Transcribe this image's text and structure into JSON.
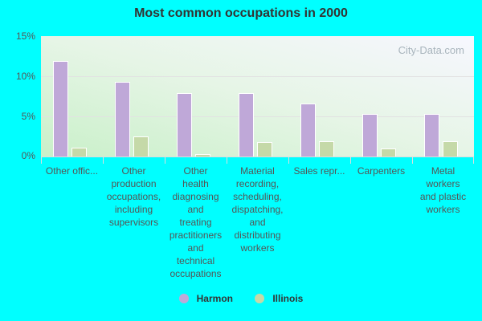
{
  "chart_data": {
    "type": "bar",
    "title": "Most common occupations in 2000",
    "xlabel": "",
    "ylabel": "",
    "ylim": [
      0,
      15
    ],
    "yticks": [
      "0%",
      "5%",
      "10%",
      "15%"
    ],
    "grid": true,
    "legend_position": "bottom",
    "categories": [
      "Other offic...",
      "Other production occupations, including supervisors",
      "Other health diagnosing and treating practitioners and technical occupations",
      "Material recording, scheduling, dispatching, and distributing workers",
      "Sales repr...",
      "Carpenters",
      "Metal workers and plastic workers"
    ],
    "series": [
      {
        "name": "Harmon",
        "color": "#bfa8d8",
        "values": [
          11.9,
          9.3,
          7.9,
          7.9,
          6.6,
          5.3,
          5.3
        ]
      },
      {
        "name": "Illinois",
        "color": "#c5d9a8",
        "values": [
          1.1,
          2.5,
          0.3,
          1.8,
          1.9,
          1.0,
          1.9
        ]
      }
    ]
  },
  "labels": {
    "title": "Most common occupations in 2000",
    "watermark": "City-Data.com",
    "yticks": {
      "t0": "0%",
      "t5": "5%",
      "t10": "10%",
      "t15": "15%"
    },
    "x": [
      "Other offic...",
      "Other\nproduction\noccupations,\nincluding\nsupervisors",
      "Other\nhealth\ndiagnosing\nand\ntreating\npractitioners\nand\ntechnical\noccupations",
      "Material\nrecording,\nscheduling,\ndispatching,\nand\ndistributing\nworkers",
      "Sales repr...",
      "Carpenters",
      "Metal\nworkers\nand plastic\nworkers"
    ],
    "legend": {
      "harmon": "Harmon",
      "illinois": "Illinois"
    }
  }
}
